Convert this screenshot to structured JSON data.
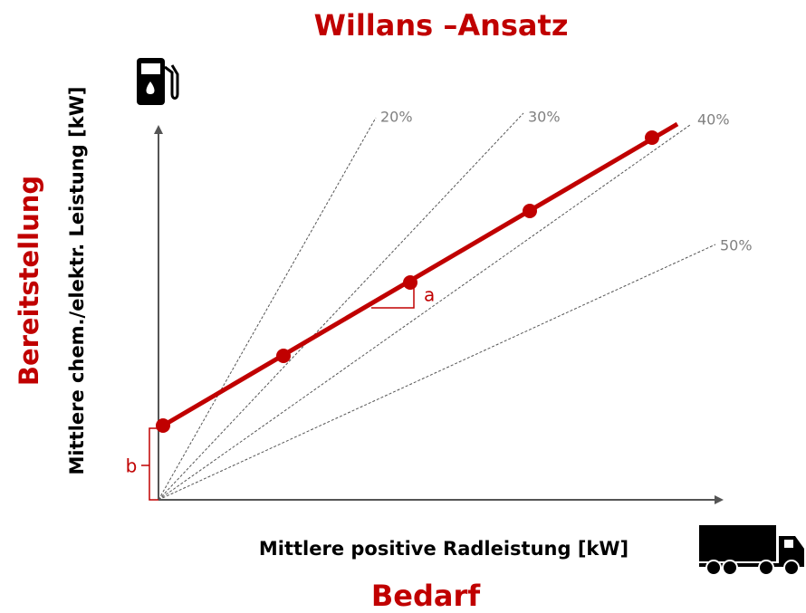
{
  "title": "Willans –Ansatz",
  "y_axis": {
    "label": "Mittlere chem./elektr. Leistung [kW]",
    "group": "Bereitstellung"
  },
  "x_axis": {
    "label": "Mittlere positive Radleistung [kW]",
    "group": "Bedarf"
  },
  "efficiency_lines": [
    "20%",
    "30%",
    "40%",
    "50%"
  ],
  "annotations": {
    "slope": "a",
    "intercept": "b"
  }
}
